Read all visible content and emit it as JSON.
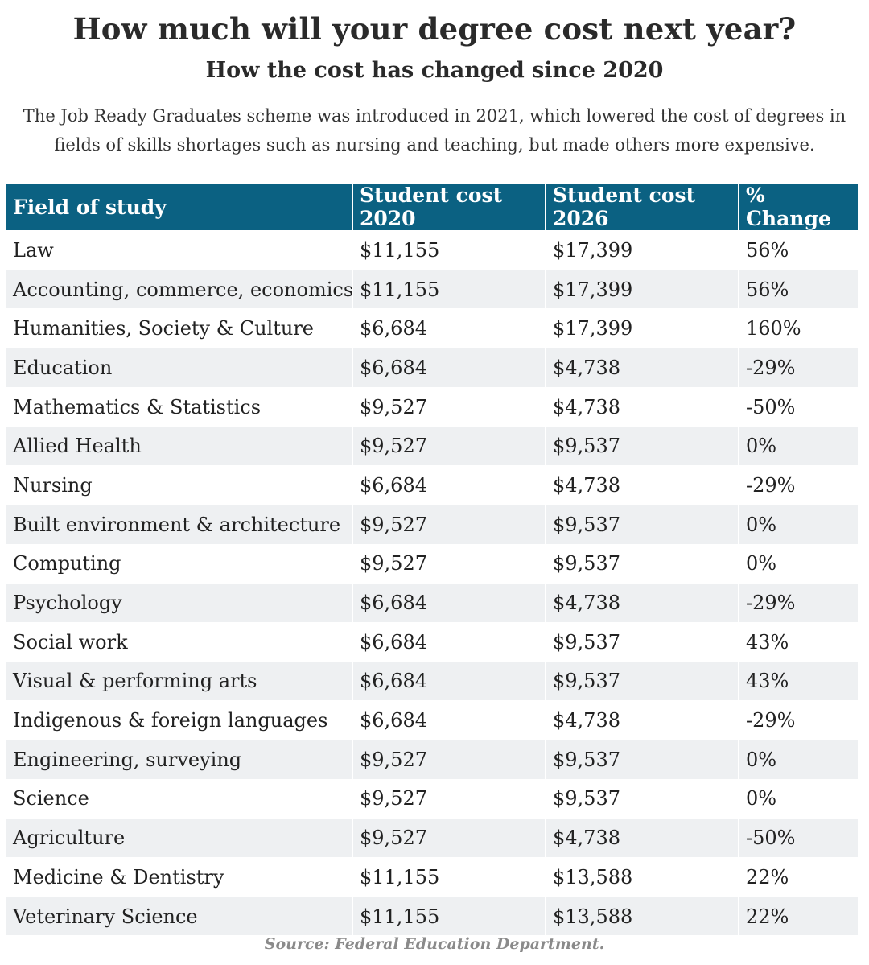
{
  "header": {
    "title": "How much will your degree cost next year?",
    "subtitle": "How the cost has changed since 2020",
    "intro": "The Job Ready Graduates scheme was introduced in 2021, which lowered the cost of degrees in fields of skills shortages such as nursing and teaching, but made others more expensive."
  },
  "colors": {
    "header_bg": "#0b6182",
    "stripe": "#eef0f2"
  },
  "chart_data": {
    "type": "table",
    "title": "How much will your degree cost next year?",
    "subtitle": "How the cost has changed since 2020",
    "columns": [
      "Field of study",
      "Student cost 2020",
      "Student cost 2026",
      "% Change"
    ],
    "rows": [
      [
        "Law",
        "$11,155",
        "$17,399",
        "56%"
      ],
      [
        "Accounting, commerce, economics",
        "$11,155",
        "$17,399",
        "56%"
      ],
      [
        "Humanities, Society & Culture",
        "$6,684",
        "$17,399",
        "160%"
      ],
      [
        "Education",
        "$6,684",
        "$4,738",
        "-29%"
      ],
      [
        "Mathematics & Statistics",
        "$9,527",
        "$4,738",
        "-50%"
      ],
      [
        "Allied Health",
        "$9,527",
        "$9,537",
        "0%"
      ],
      [
        "Nursing",
        "$6,684",
        "$4,738",
        "-29%"
      ],
      [
        "Built environment & architecture",
        "$9,527",
        "$9,537",
        "0%"
      ],
      [
        "Computing",
        "$9,527",
        "$9,537",
        "0%"
      ],
      [
        "Psychology",
        "$6,684",
        "$4,738",
        "-29%"
      ],
      [
        "Social work",
        "$6,684",
        "$9,537",
        "43%"
      ],
      [
        "Visual & performing arts",
        "$6,684",
        "$9,537",
        "43%"
      ],
      [
        "Indigenous & foreign languages",
        "$6,684",
        "$4,738",
        "-29%"
      ],
      [
        "Engineering, surveying",
        "$9,527",
        "$9,537",
        "0%"
      ],
      [
        "Science",
        "$9,527",
        "$9,537",
        "0%"
      ],
      [
        "Agriculture",
        "$9,527",
        "$4,738",
        "-50%"
      ],
      [
        "Medicine & Dentistry",
        "$11,155",
        "$13,588",
        "22%"
      ],
      [
        "Veterinary Science",
        "$11,155",
        "$13,588",
        "22%"
      ]
    ]
  },
  "footer": {
    "source": "Source: Federal Education Department."
  }
}
